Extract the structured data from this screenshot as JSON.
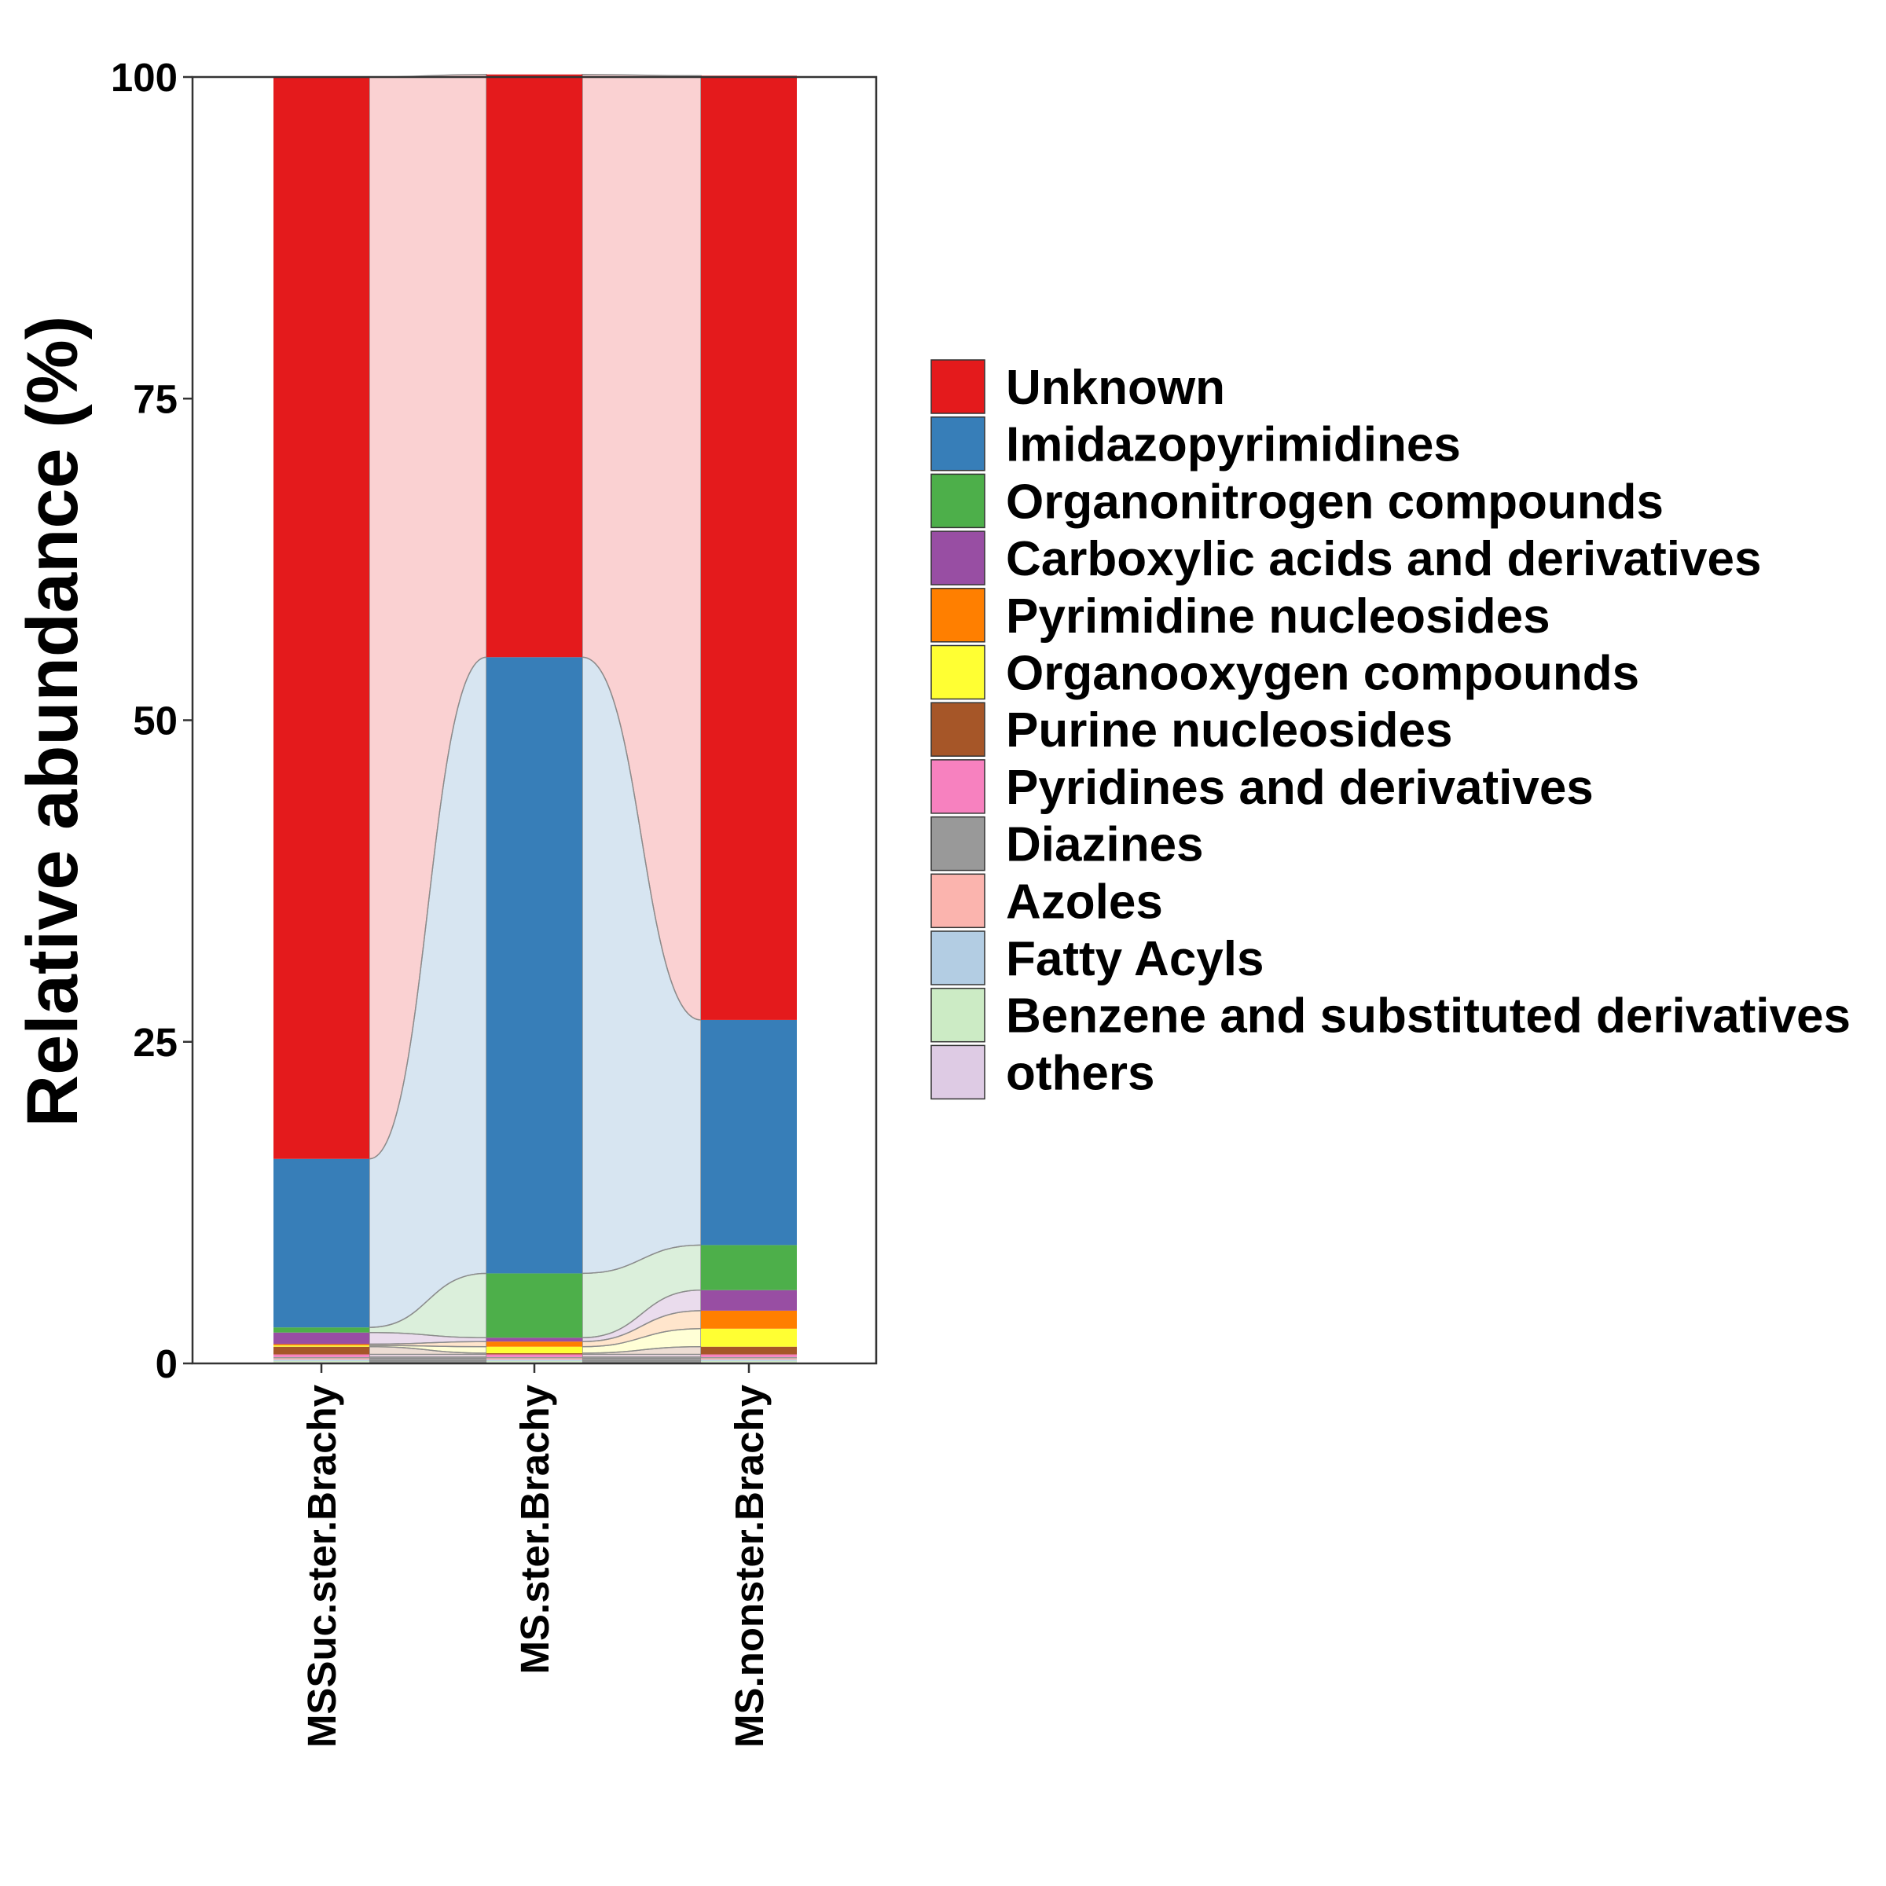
{
  "chart_data": {
    "type": "bar",
    "stacked": true,
    "alluvial_flows": true,
    "categories": [
      "MSSuc.ster.Brachy",
      "MS.ster.Brachy",
      "MS.nonster.Brachy"
    ],
    "ylabel": "Relative abundance (%)",
    "xlabel": "",
    "ylim": [
      0,
      100
    ],
    "yticks": [
      0,
      25,
      50,
      75,
      100
    ],
    "grid": false,
    "legend_position": "right",
    "series": [
      {
        "name": "others",
        "color": "#DECBE4",
        "values": [
          0.1,
          0.1,
          0.1
        ]
      },
      {
        "name": "Benzene and substituted derivatives",
        "color": "#CCEBC5",
        "values": [
          0.1,
          0.1,
          0.1
        ]
      },
      {
        "name": "Fatty Acyls",
        "color": "#B3CDE3",
        "values": [
          0.1,
          0.1,
          0.1
        ]
      },
      {
        "name": "Azoles",
        "color": "#FBB4AE",
        "values": [
          0.1,
          0.1,
          0.1
        ]
      },
      {
        "name": "Diazines",
        "color": "#999999",
        "values": [
          0.1,
          0.1,
          0.1
        ]
      },
      {
        "name": "Pyridines and derivatives",
        "color": "#F781BF",
        "values": [
          0.2,
          0.2,
          0.2
        ]
      },
      {
        "name": "Purine nucleosides",
        "color": "#A65628",
        "values": [
          0.6,
          0.1,
          0.6
        ]
      },
      {
        "name": "Organooxygen compounds",
        "color": "#FFFF33",
        "values": [
          0.1,
          0.5,
          1.4
        ]
      },
      {
        "name": "Pyrimidine nucleosides",
        "color": "#FF7F00",
        "values": [
          0.1,
          0.4,
          1.4
        ]
      },
      {
        "name": "Carboxylic acids and derivatives",
        "color": "#984EA3",
        "values": [
          0.9,
          0.3,
          1.6
        ]
      },
      {
        "name": "Organonitrogen compounds",
        "color": "#4DAF4A",
        "values": [
          0.4,
          5.0,
          3.5
        ]
      },
      {
        "name": "Imidazopyrimidines",
        "color": "#377EB8",
        "values": [
          13.1,
          47.9,
          17.5
        ]
      },
      {
        "name": "Unknown",
        "color": "#E41A1C",
        "values": [
          84.1,
          45.3,
          73.4
        ]
      }
    ],
    "legend_entries": [
      "Unknown",
      "Imidazopyrimidines",
      "Organonitrogen compounds",
      "Carboxylic acids and derivatives",
      "Pyrimidine nucleosides",
      "Organooxygen compounds",
      "Purine nucleosides",
      "Pyridines and derivatives",
      "Diazines",
      "Azoles",
      "Fatty Acyls",
      "Benzene and substituted derivatives",
      "others"
    ]
  }
}
